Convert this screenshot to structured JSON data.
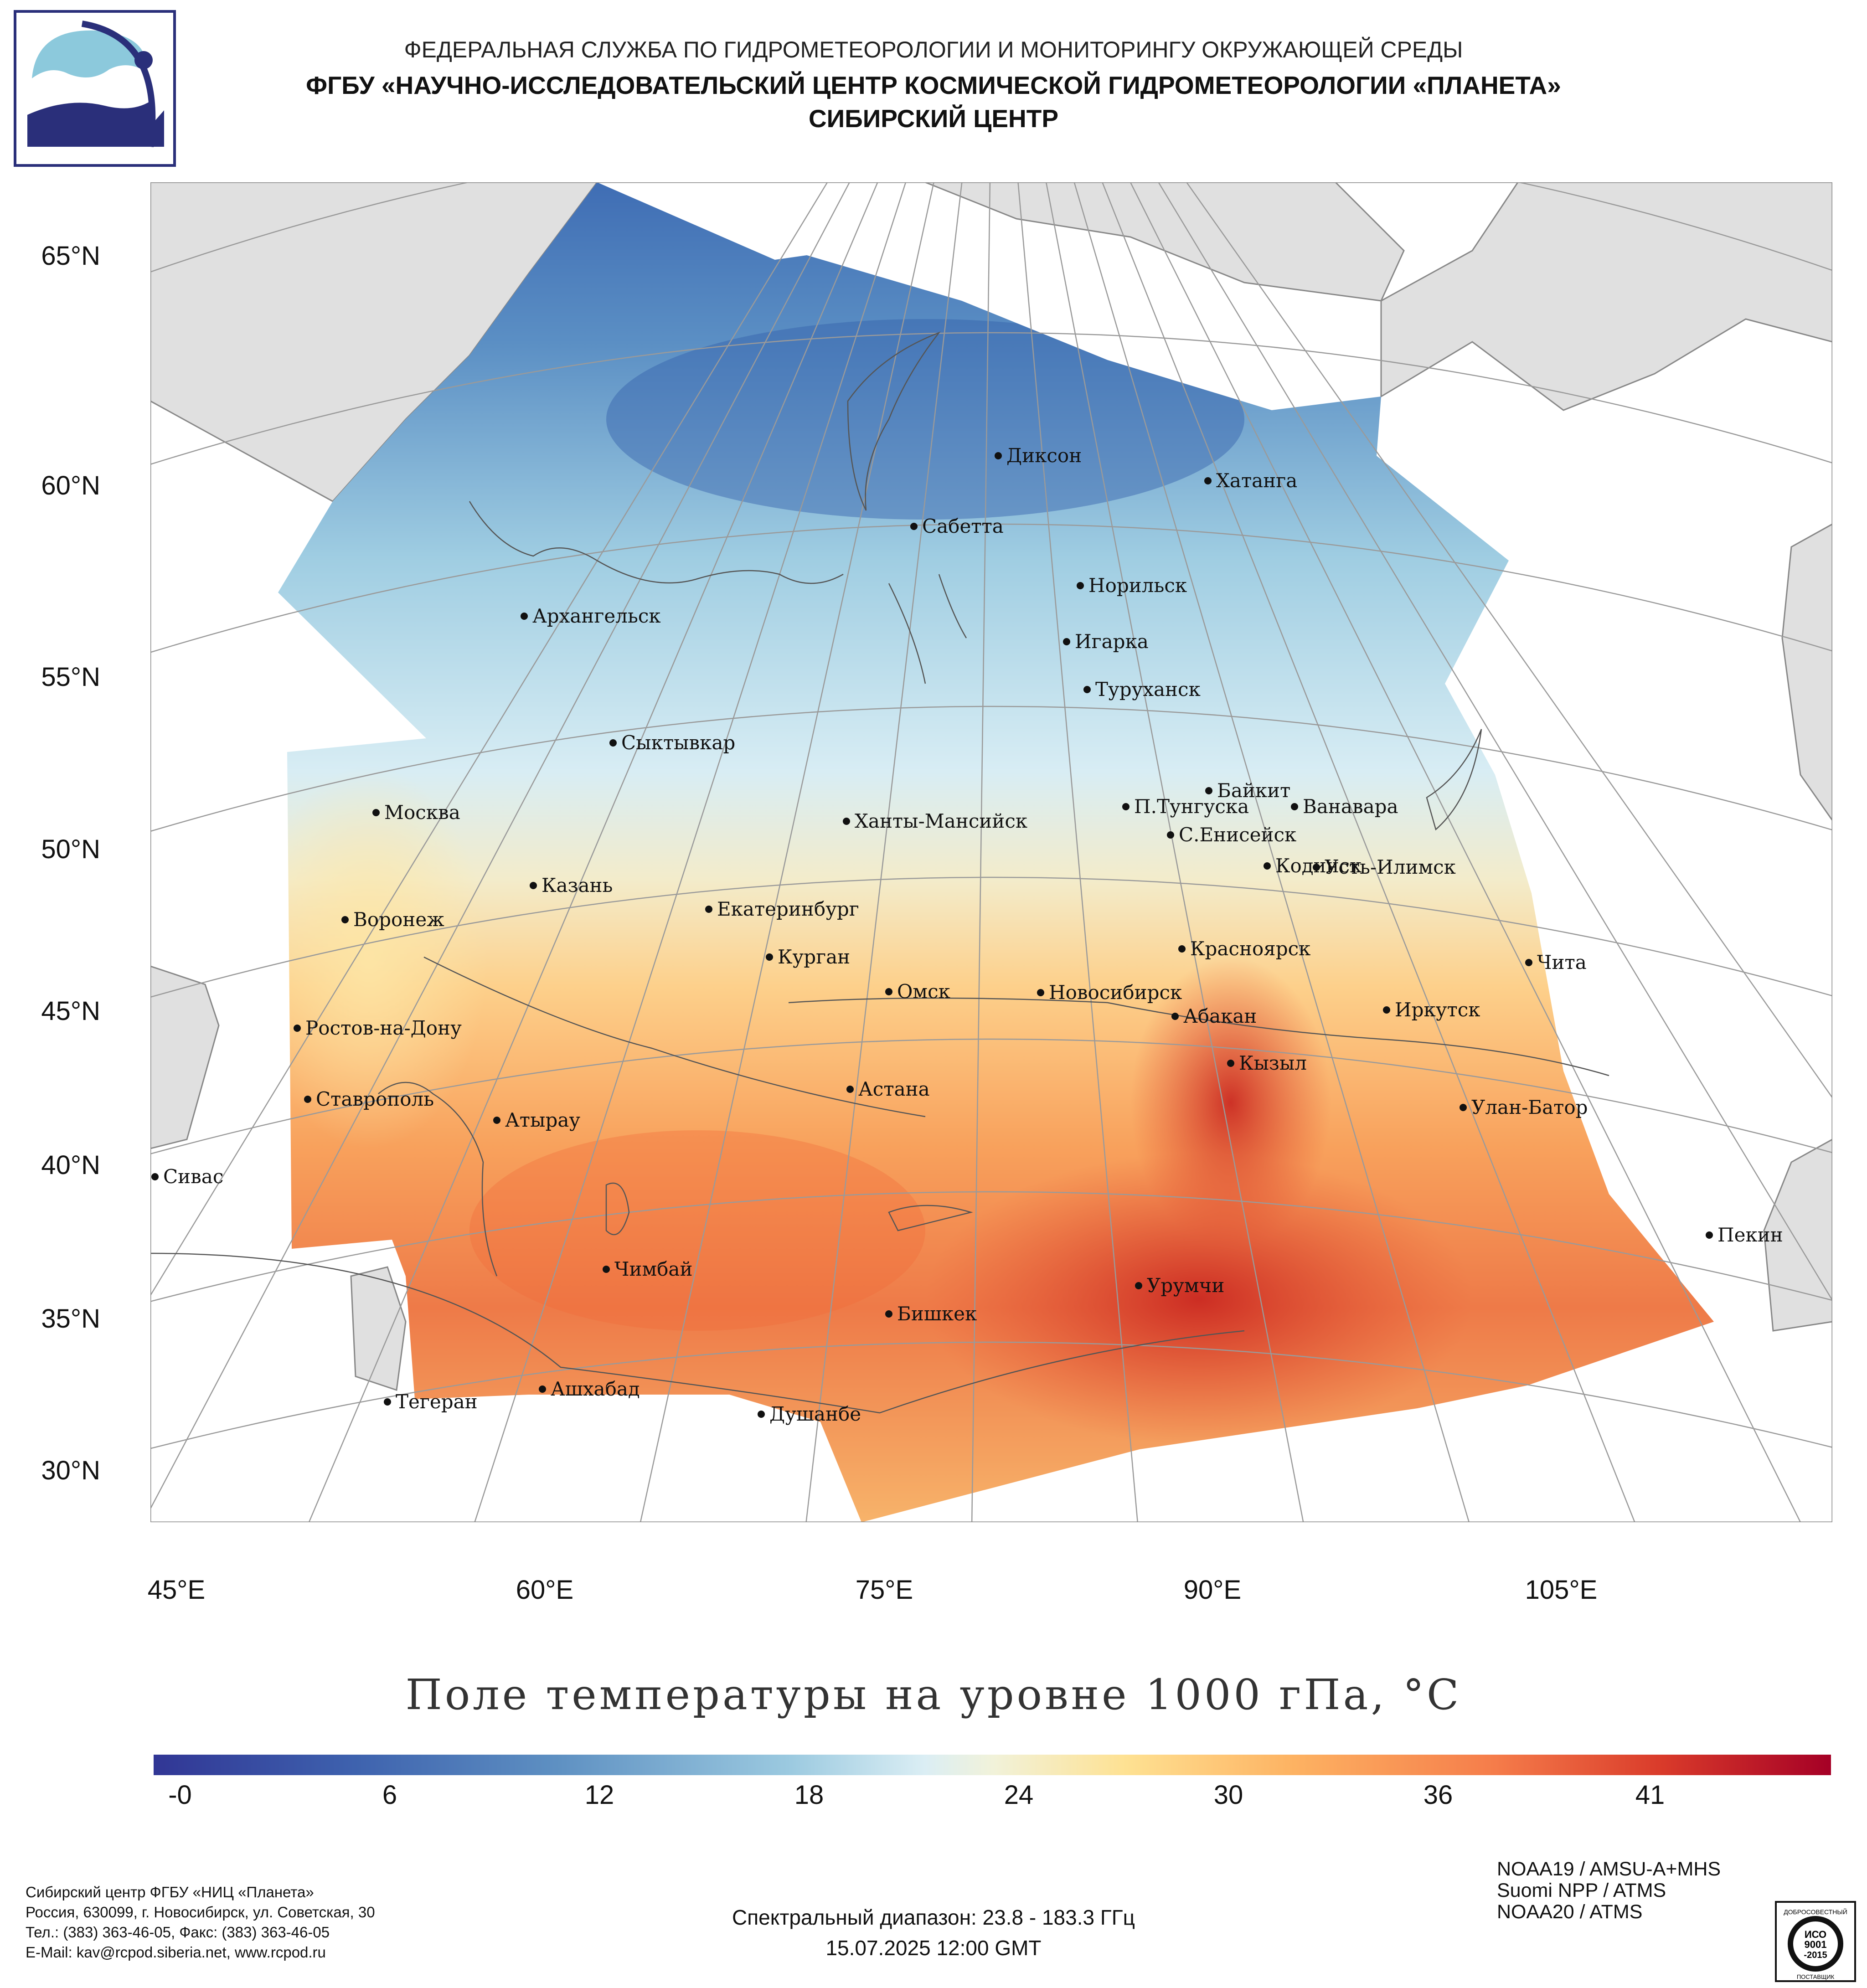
{
  "header": {
    "line1": "ФЕДЕРАЛЬНАЯ СЛУЖБА ПО ГИДРОМЕТЕОРОЛОГИИ И МОНИТОРИНГУ ОКРУЖАЮЩЕЙ СРЕДЫ",
    "line2": "ФГБУ «НАУЧНО-ИССЛЕДОВАТЕЛЬСКИЙ ЦЕНТР КОСМИЧЕСКОЙ ГИДРОМЕТЕОРОЛОГИИ «ПЛАНЕТА»",
    "line3": "СИБИРСКИЙ ЦЕНТР"
  },
  "map": {
    "lat_labels": [
      "65°N",
      "60°N",
      "55°N",
      "50°N",
      "45°N",
      "40°N",
      "35°N",
      "30°N"
    ],
    "lon_labels": [
      "45°E",
      "60°E",
      "75°E",
      "90°E",
      "105°E"
    ],
    "cities": [
      {
        "name": "Диксон"
      },
      {
        "name": "Хатанга"
      },
      {
        "name": "Сабетта"
      },
      {
        "name": "Норильск"
      },
      {
        "name": "Архангельск"
      },
      {
        "name": "Игарка"
      },
      {
        "name": "Туруханск"
      },
      {
        "name": "Сыктывкар"
      },
      {
        "name": "Байкит"
      },
      {
        "name": "Москва"
      },
      {
        "name": "П.Тунгуска"
      },
      {
        "name": "Ванавара"
      },
      {
        "name": "Ханты-Мансийск"
      },
      {
        "name": "С.Енисейск"
      },
      {
        "name": "Кодинск"
      },
      {
        "name": "Усть-Илимск"
      },
      {
        "name": "Казань"
      },
      {
        "name": "Екатеринбург"
      },
      {
        "name": "Воронеж"
      },
      {
        "name": "Красноярск"
      },
      {
        "name": "Курган"
      },
      {
        "name": "Чита"
      },
      {
        "name": "Омск"
      },
      {
        "name": "Новосибирск"
      },
      {
        "name": "Иркутск"
      },
      {
        "name": "Абакан"
      },
      {
        "name": "Ростов-на-Дону"
      },
      {
        "name": "Кызыл"
      },
      {
        "name": "Астана"
      },
      {
        "name": "Ставрополь"
      },
      {
        "name": "Улан-Батор"
      },
      {
        "name": "Атырау"
      },
      {
        "name": "Сивас"
      },
      {
        "name": "Пекин"
      },
      {
        "name": "Чимбай"
      },
      {
        "name": "Урумчи"
      },
      {
        "name": "Бишкек"
      },
      {
        "name": "Ашхабад"
      },
      {
        "name": "Тегеран"
      },
      {
        "name": "Душанбе"
      }
    ]
  },
  "title": "Поле температуры на уровне 1000 гПа, °C",
  "colorbar": {
    "ticks": [
      "-0",
      "6",
      "12",
      "18",
      "24",
      "30",
      "36",
      "41"
    ],
    "min": 0,
    "max": 44
  },
  "footer": {
    "org_lines": [
      "Сибирский центр ФГБУ «НИЦ «Планета»",
      "Россия, 630099, г. Новосибирск, ул. Советская, 30",
      "Тел.: (383) 363-46-05, Факс: (383) 363-46-05",
      "E-Mail: kav@rcpod.siberia.net, www.rcpod.ru"
    ],
    "spectral": "Спектральный диапазон: 23.8 - 183.3 ГГц",
    "datetime": "15.07.2025 12:00 GMT",
    "instruments": [
      "NOAA19 / AMSU-A+MHS",
      "Suomi NPP / ATMS",
      "NOAA20 / ATMS"
    ],
    "cert": {
      "top": "ДОБРОСОВЕСТНЫЙ",
      "mid1": "ИСО",
      "mid2": "9001",
      "mid3": "-2015",
      "bottom": "ПОСТАВЩИК"
    }
  }
}
